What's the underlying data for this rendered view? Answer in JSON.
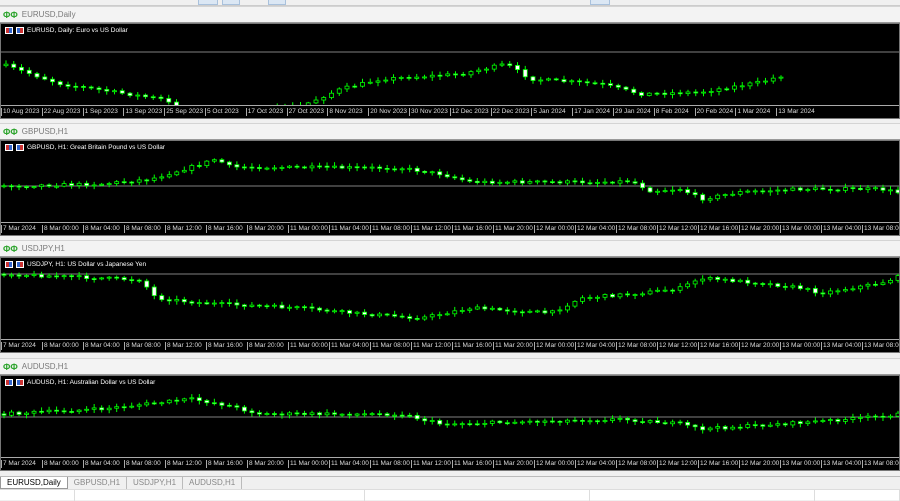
{
  "colors": {
    "bull_outline": "#00ff00",
    "bear_fill": "#ffffff",
    "background": "#000000",
    "price_line": "#808080"
  },
  "charts": [
    {
      "tab": "EURUSD,Daily",
      "header": "EURUSD, Daily:  Euro vs US Dollar",
      "icon": "candlestick-chart-icon",
      "time_labels": [
        "10 Aug 2023",
        "22 Aug 2023",
        "1 Sep 2023",
        "13 Sep 2023",
        "25 Sep 2023",
        "5 Oct 2023",
        "17 Oct 2023",
        "27 Oct 2023",
        "8 Nov 2023",
        "20 Nov 2023",
        "30 Nov 2023",
        "12 Dec 2023",
        "22 Dec 2023",
        "5 Jan 2024",
        "17 Jan 2024",
        "29 Jan 2024",
        "8 Feb 2024",
        "20 Feb 2024",
        "1 Mar 2024",
        "13 Mar 2024"
      ]
    },
    {
      "tab": "GBPUSD,H1",
      "header": "GBPUSD, H1:  Great Britain Pound vs US Dollar",
      "icon": "candlestick-chart-icon",
      "time_labels": [
        "7 Mar 2024",
        "8 Mar 00:00",
        "8 Mar 04:00",
        "8 Mar 08:00",
        "8 Mar 12:00",
        "8 Mar 16:00",
        "8 Mar 20:00",
        "11 Mar 00:00",
        "11 Mar 04:00",
        "11 Mar 08:00",
        "11 Mar 12:00",
        "11 Mar 16:00",
        "11 Mar 20:00",
        "12 Mar 00:00",
        "12 Mar 04:00",
        "12 Mar 08:00",
        "12 Mar 12:00",
        "12 Mar 16:00",
        "12 Mar 20:00",
        "13 Mar 00:00",
        "13 Mar 04:00",
        "13 Mar 08:00"
      ]
    },
    {
      "tab": "USDJPY,H1",
      "header": "USDJPY, H1:  US Dollar vs Japanese Yen",
      "icon": "candlestick-chart-icon",
      "time_labels": [
        "7 Mar 2024",
        "8 Mar 00:00",
        "8 Mar 04:00",
        "8 Mar 08:00",
        "8 Mar 12:00",
        "8 Mar 16:00",
        "8 Mar 20:00",
        "11 Mar 00:00",
        "11 Mar 04:00",
        "11 Mar 08:00",
        "11 Mar 12:00",
        "11 Mar 16:00",
        "11 Mar 20:00",
        "12 Mar 00:00",
        "12 Mar 04:00",
        "12 Mar 08:00",
        "12 Mar 12:00",
        "12 Mar 16:00",
        "12 Mar 20:00",
        "13 Mar 00:00",
        "13 Mar 04:00",
        "13 Mar 08:00"
      ]
    },
    {
      "tab": "AUDUSD,H1",
      "header": "AUDUSD, H1:  Australian Dollar vs US Dollar",
      "icon": "candlestick-chart-icon",
      "time_labels": [
        "7 Mar 2024",
        "8 Mar 00:00",
        "8 Mar 04:00",
        "8 Mar 08:00",
        "8 Mar 12:00",
        "8 Mar 16:00",
        "8 Mar 20:00",
        "11 Mar 00:00",
        "11 Mar 04:00",
        "11 Mar 08:00",
        "11 Mar 12:00",
        "11 Mar 16:00",
        "11 Mar 20:00",
        "12 Mar 00:00",
        "12 Mar 04:00",
        "12 Mar 08:00",
        "12 Mar 12:00",
        "12 Mar 16:00",
        "12 Mar 20:00",
        "13 Mar 00:00",
        "13 Mar 04:00",
        "13 Mar 08:00"
      ]
    }
  ],
  "active_tab": "EURUSD,Daily"
}
